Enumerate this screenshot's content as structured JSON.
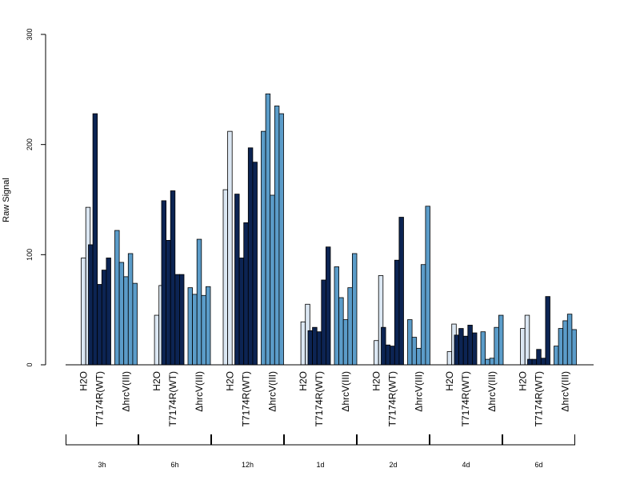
{
  "chart_data": {
    "type": "bar",
    "ylabel": "Raw Signal",
    "ylim": [
      0,
      300
    ],
    "yticks": [
      0,
      100,
      200,
      300
    ],
    "colors": {
      "H2O": "#dbe7f3",
      "T7174R(WT)": "#0c2453",
      "ΔhrcV(III)": "#5b9cc9"
    },
    "conditions": [
      "H2O",
      "T7174R(WT)",
      "ΔhrcV(III)"
    ],
    "groups": [
      {
        "time": "3h",
        "series": {
          "H2O": [
            0,
            97,
            143
          ],
          "T7174R(WT)": [
            109,
            228,
            73,
            86,
            97
          ],
          "ΔhrcV(III)": [
            122,
            93,
            80,
            101,
            74
          ]
        }
      },
      {
        "time": "6h",
        "series": {
          "H2O": [
            0,
            45,
            72
          ],
          "T7174R(WT)": [
            149,
            113,
            158,
            82,
            82
          ],
          "ΔhrcV(III)": [
            70,
            64,
            114,
            63,
            71
          ]
        }
      },
      {
        "time": "12h",
        "series": {
          "H2O": [
            159,
            212,
            0
          ],
          "T7174R(WT)": [
            155,
            97,
            129,
            197,
            184
          ],
          "ΔhrcV(III)": [
            212,
            246,
            154,
            235,
            228
          ]
        }
      },
      {
        "time": "1d",
        "series": {
          "H2O": [
            0,
            39,
            55
          ],
          "T7174R(WT)": [
            31,
            34,
            30,
            77,
            107
          ],
          "ΔhrcV(III)": [
            89,
            61,
            41,
            70,
            101
          ]
        }
      },
      {
        "time": "2d",
        "series": {
          "H2O": [
            0,
            22,
            81
          ],
          "T7174R(WT)": [
            34,
            18,
            17,
            95,
            134
          ],
          "ΔhrcV(III)": [
            41,
            25,
            15,
            91,
            144
          ]
        }
      },
      {
        "time": "4d",
        "series": {
          "H2O": [
            0,
            12,
            37
          ],
          "T7174R(WT)": [
            27,
            33,
            26,
            36,
            29
          ],
          "ΔhrcV(III)": [
            30,
            5,
            6,
            34,
            45
          ]
        }
      },
      {
        "time": "6d",
        "series": {
          "H2O": [
            0,
            33,
            45
          ],
          "T7174R(WT)": [
            5,
            5,
            14,
            6,
            62
          ],
          "ΔhrcV(III)": [
            17,
            33,
            40,
            46,
            32
          ]
        }
      }
    ]
  }
}
